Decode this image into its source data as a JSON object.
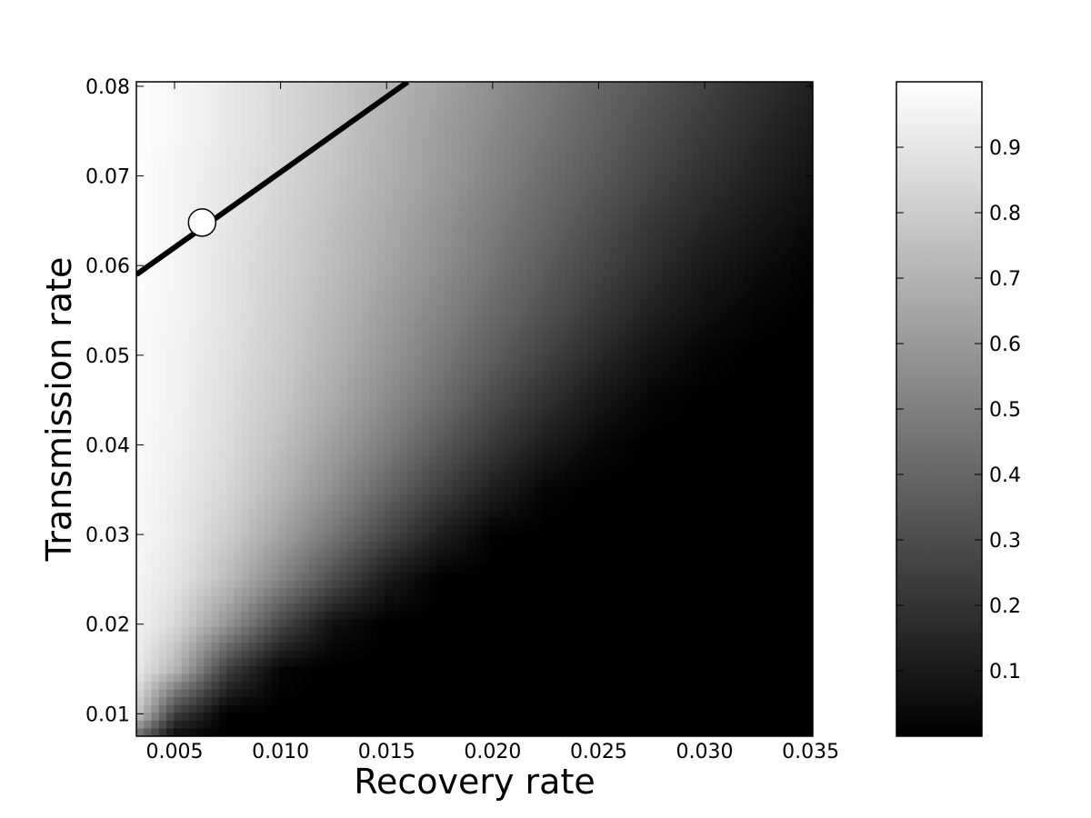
{
  "chart_data": {
    "type": "heatmap",
    "title": "",
    "xlabel": "Recovery rate",
    "ylabel": "Transmission rate",
    "xlim": [
      0.0032,
      0.0351
    ],
    "ylim": [
      0.0075,
      0.0805
    ],
    "x_ticks": [
      0.005,
      0.01,
      0.015,
      0.02,
      0.025,
      0.03,
      0.035
    ],
    "x_tick_labels": [
      "0.005",
      "0.010",
      "0.015",
      "0.020",
      "0.025",
      "0.030",
      "0.035"
    ],
    "y_ticks": [
      0.01,
      0.02,
      0.03,
      0.04,
      0.05,
      0.06,
      0.07,
      0.08
    ],
    "y_tick_labels": [
      "0.01",
      "0.02",
      "0.03",
      "0.04",
      "0.05",
      "0.06",
      "0.07",
      "0.08"
    ],
    "colormap": "gray",
    "colorbar": {
      "range": [
        0.0,
        1.0
      ],
      "ticks": [
        0.1,
        0.2,
        0.3,
        0.4,
        0.5,
        0.6,
        0.7,
        0.8,
        0.9
      ],
      "tick_labels": [
        "0.1",
        "0.2",
        "0.3",
        "0.4",
        "0.5",
        "0.6",
        "0.7",
        "0.8",
        "0.9"
      ]
    },
    "value_grid": {
      "x": [
        0.0032,
        0.005,
        0.0075,
        0.01,
        0.0125,
        0.015,
        0.0175,
        0.02,
        0.0225,
        0.025,
        0.0275,
        0.03,
        0.0325,
        0.0351
      ],
      "y": [
        0.0075,
        0.01,
        0.015,
        0.02,
        0.025,
        0.03,
        0.035,
        0.04,
        0.045,
        0.05,
        0.055,
        0.06,
        0.065,
        0.07,
        0.075,
        0.08
      ],
      "z": [
        [
          0.42,
          0.05,
          0.0,
          0.0,
          0.0,
          0.0,
          0.0,
          0.0,
          0.0,
          0.0,
          0.0,
          0.0,
          0.0,
          0.0
        ],
        [
          0.8,
          0.25,
          0.0,
          0.0,
          0.0,
          0.0,
          0.0,
          0.0,
          0.0,
          0.0,
          0.0,
          0.0,
          0.0,
          0.0
        ],
        [
          0.92,
          0.72,
          0.25,
          0.02,
          0.0,
          0.0,
          0.0,
          0.0,
          0.0,
          0.0,
          0.0,
          0.0,
          0.0,
          0.0
        ],
        [
          0.95,
          0.85,
          0.58,
          0.28,
          0.06,
          0.0,
          0.0,
          0.0,
          0.0,
          0.0,
          0.0,
          0.0,
          0.0,
          0.0
        ],
        [
          0.96,
          0.9,
          0.74,
          0.52,
          0.3,
          0.1,
          0.0,
          0.0,
          0.0,
          0.0,
          0.0,
          0.0,
          0.0,
          0.0
        ],
        [
          0.97,
          0.92,
          0.8,
          0.64,
          0.46,
          0.28,
          0.12,
          0.01,
          0.0,
          0.0,
          0.0,
          0.0,
          0.0,
          0.0
        ],
        [
          0.97,
          0.93,
          0.84,
          0.71,
          0.56,
          0.4,
          0.25,
          0.12,
          0.02,
          0.0,
          0.0,
          0.0,
          0.0,
          0.0
        ],
        [
          0.98,
          0.94,
          0.86,
          0.75,
          0.62,
          0.49,
          0.35,
          0.22,
          0.11,
          0.03,
          0.0,
          0.0,
          0.0,
          0.0
        ],
        [
          0.98,
          0.95,
          0.87,
          0.78,
          0.67,
          0.55,
          0.43,
          0.3,
          0.19,
          0.09,
          0.02,
          0.0,
          0.0,
          0.0
        ],
        [
          0.98,
          0.95,
          0.88,
          0.8,
          0.7,
          0.59,
          0.48,
          0.37,
          0.26,
          0.16,
          0.07,
          0.02,
          0.0,
          0.0
        ],
        [
          0.98,
          0.96,
          0.89,
          0.81,
          0.72,
          0.62,
          0.52,
          0.42,
          0.32,
          0.22,
          0.13,
          0.06,
          0.02,
          0.0
        ],
        [
          0.99,
          0.96,
          0.89,
          0.82,
          0.74,
          0.65,
          0.56,
          0.46,
          0.36,
          0.27,
          0.18,
          0.1,
          0.05,
          0.01
        ],
        [
          0.99,
          0.96,
          0.9,
          0.83,
          0.75,
          0.67,
          0.58,
          0.49,
          0.4,
          0.31,
          0.22,
          0.15,
          0.09,
          0.04
        ],
        [
          0.99,
          0.96,
          0.9,
          0.84,
          0.77,
          0.69,
          0.61,
          0.52,
          0.43,
          0.35,
          0.27,
          0.19,
          0.13,
          0.07
        ],
        [
          0.99,
          0.97,
          0.91,
          0.85,
          0.78,
          0.7,
          0.62,
          0.54,
          0.46,
          0.38,
          0.3,
          0.23,
          0.16,
          0.1
        ],
        [
          0.99,
          0.97,
          0.91,
          0.85,
          0.78,
          0.71,
          0.64,
          0.56,
          0.48,
          0.4,
          0.33,
          0.26,
          0.19,
          0.13
        ]
      ]
    },
    "line": {
      "x": [
        0.0032,
        0.016
      ],
      "y": [
        0.059,
        0.0805
      ],
      "color": "#000000"
    },
    "marker": {
      "x": 0.0063,
      "y": 0.0648,
      "fill": "#ffffff",
      "stroke": "#000000"
    }
  }
}
